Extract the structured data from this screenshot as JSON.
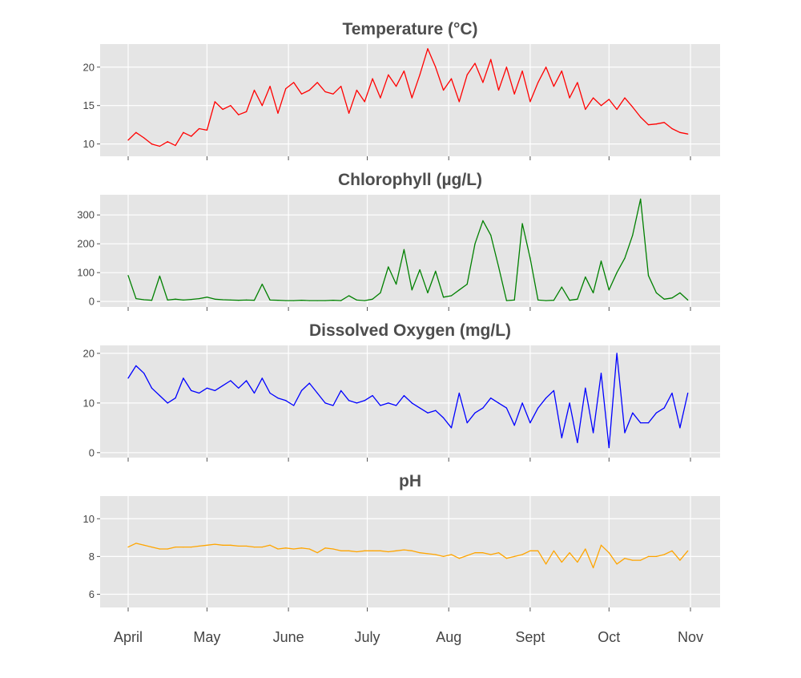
{
  "chart_data": [
    {
      "type": "line",
      "title": "Temperature (°C)",
      "color": "#ff0000",
      "ylim": [
        8.4,
        23.0
      ],
      "yticks": [
        10,
        15,
        20
      ],
      "grid": true,
      "values": [
        10.5,
        11.5,
        10.8,
        10,
        9.7,
        10.3,
        9.8,
        11.5,
        11,
        12,
        11.8,
        15.5,
        14.5,
        15,
        13.8,
        14.2,
        17,
        15,
        17.5,
        14,
        17.2,
        18,
        16.5,
        17,
        18,
        16.8,
        16.5,
        17.5,
        14,
        17,
        15.5,
        18.5,
        16,
        19,
        17.5,
        19.5,
        16,
        19,
        22.4,
        20,
        17,
        18.5,
        15.5,
        19,
        20.5,
        18,
        21,
        17,
        20,
        16.5,
        19.5,
        15.5,
        18,
        20,
        17.5,
        19.5,
        16,
        18,
        14.5,
        16,
        15,
        15.8,
        14.5,
        16,
        14.8,
        13.5,
        12.5,
        12.6,
        12.8,
        12,
        11.5,
        11.3
      ]
    },
    {
      "type": "line",
      "title": "Chlorophyll (µg/L)",
      "color": "#008000",
      "ylim": [
        -19,
        370
      ],
      "yticks": [
        0,
        100,
        200,
        300
      ],
      "grid": true,
      "values": [
        90,
        10,
        6,
        4,
        88,
        5,
        8,
        5,
        7,
        10,
        15,
        8,
        6,
        5,
        4,
        5,
        4,
        60,
        5,
        4,
        3,
        3,
        4,
        3,
        3,
        3,
        4,
        3,
        20,
        5,
        3,
        8,
        30,
        120,
        60,
        180,
        40,
        110,
        30,
        105,
        15,
        20,
        40,
        60,
        200,
        280,
        230,
        120,
        3,
        5,
        270,
        150,
        5,
        3,
        4,
        50,
        4,
        8,
        85,
        30,
        140,
        40,
        100,
        150,
        230,
        355,
        90,
        30,
        8,
        12,
        30,
        5
      ]
    },
    {
      "type": "line",
      "title": "Dissolved Oxygen (mg/L)",
      "color": "#0000ff",
      "ylim": [
        -1,
        21.6
      ],
      "yticks": [
        0,
        10,
        20
      ],
      "grid": true,
      "values": [
        15,
        17.5,
        16,
        13,
        11.5,
        10,
        11,
        15,
        12.5,
        12,
        13,
        12.5,
        13.5,
        14.5,
        13,
        14.5,
        12,
        15,
        12,
        11,
        10.5,
        9.5,
        12.5,
        14,
        12,
        10,
        9.5,
        12.5,
        10.5,
        10,
        10.5,
        11.5,
        9.5,
        10,
        9.5,
        11.5,
        10,
        9,
        8,
        8.5,
        7,
        5,
        12,
        6,
        8,
        9,
        11,
        10,
        9,
        5.5,
        10,
        6,
        9,
        11,
        12.5,
        3,
        10,
        2,
        13,
        4,
        16,
        1,
        20,
        4,
        8,
        6,
        6,
        8,
        9,
        12,
        5,
        12
      ]
    },
    {
      "type": "line",
      "title": "pH",
      "color": "#ffa500",
      "ylim": [
        5.3,
        11.2
      ],
      "yticks": [
        6,
        8,
        10
      ],
      "grid": true,
      "values": [
        8.5,
        8.7,
        8.6,
        8.5,
        8.4,
        8.4,
        8.5,
        8.5,
        8.5,
        8.55,
        8.6,
        8.65,
        8.6,
        8.6,
        8.55,
        8.55,
        8.5,
        8.5,
        8.6,
        8.4,
        8.45,
        8.4,
        8.45,
        8.4,
        8.2,
        8.45,
        8.4,
        8.3,
        8.3,
        8.25,
        8.3,
        8.3,
        8.3,
        8.25,
        8.3,
        8.35,
        8.3,
        8.2,
        8.15,
        8.1,
        8.0,
        8.1,
        7.9,
        8.05,
        8.2,
        8.2,
        8.1,
        8.2,
        7.9,
        8.0,
        8.1,
        8.3,
        8.3,
        7.6,
        8.3,
        7.7,
        8.2,
        7.7,
        8.4,
        7.4,
        8.6,
        8.2,
        7.6,
        7.9,
        7.8,
        7.8,
        8.0,
        8.0,
        8.1,
        8.3,
        7.8,
        8.3
      ]
    }
  ],
  "x_dates": [
    "04-01",
    "04-04",
    "04-07",
    "04-10",
    "04-13",
    "04-16",
    "04-19",
    "04-22",
    "04-25",
    "04-28",
    "05-01",
    "05-04",
    "05-07",
    "05-10",
    "05-13",
    "05-16",
    "05-19",
    "05-22",
    "05-25",
    "05-28",
    "05-31",
    "06-03",
    "06-06",
    "06-09",
    "06-12",
    "06-15",
    "06-18",
    "06-21",
    "06-24",
    "06-27",
    "06-30",
    "07-03",
    "07-06",
    "07-09",
    "07-12",
    "07-15",
    "07-18",
    "07-21",
    "07-24",
    "07-27",
    "07-30",
    "08-02",
    "08-05",
    "08-08",
    "08-11",
    "08-14",
    "08-17",
    "08-20",
    "08-23",
    "08-26",
    "08-29",
    "09-01",
    "09-04",
    "09-07",
    "09-10",
    "09-13",
    "09-16",
    "09-19",
    "09-22",
    "09-25",
    "09-28",
    "10-01",
    "10-04",
    "10-07",
    "10-10",
    "10-13",
    "10-16",
    "10-19",
    "10-22",
    "10-25",
    "10-28",
    "10-31"
  ],
  "x_ticks": [
    {
      "date": "04-01",
      "label": "April"
    },
    {
      "date": "05-01",
      "label": "May"
    },
    {
      "date": "06-01",
      "label": "June"
    },
    {
      "date": "07-01",
      "label": "July"
    },
    {
      "date": "08-01",
      "label": "Aug"
    },
    {
      "date": "09-01",
      "label": "Sept"
    },
    {
      "date": "10-01",
      "label": "Oct"
    },
    {
      "date": "11-01",
      "label": "Nov"
    }
  ]
}
